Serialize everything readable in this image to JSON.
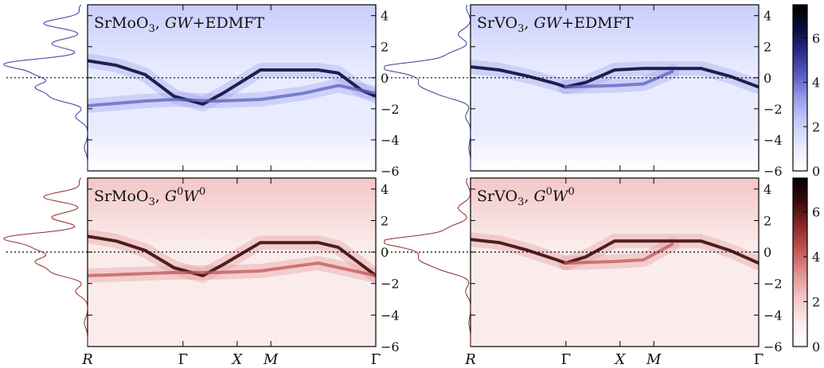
{
  "figure": {
    "high_label": "k-path labels and colorbar ticks as printed"
  },
  "kpath": {
    "labels": [
      "R",
      "Γ",
      "X",
      "M",
      "Γ"
    ]
  },
  "colors": {
    "blue_scale": [
      "#ffffff",
      "#e9ebff",
      "#c9cdfb",
      "#9aa0ec",
      "#5b60c2",
      "#2a2d8a",
      "#0b0c3a",
      "#000000"
    ],
    "red_scale": [
      "#ffffff",
      "#fbecec",
      "#f3c6c6",
      "#e29494",
      "#c25656",
      "#8a2a2a",
      "#3a0b0b",
      "#000000"
    ],
    "blue_line": "#3b3b9c",
    "red_line": "#8e2b2b",
    "fermi_line": "#000000"
  },
  "chart_data": [
    {
      "type": "heatmap",
      "title": "SrMoO3, GW+EDMFT",
      "title_parts": {
        "material": "SrMoO",
        "sub": "3",
        "method": "GW+EDMFT"
      },
      "colormap": "blue",
      "xticklabels": [
        "R",
        "Γ",
        "X",
        "M",
        "Γ"
      ],
      "xlabel": "",
      "ylabel": "",
      "ylim": [
        -6,
        4.7
      ],
      "yticks": [
        -6,
        -4,
        -2,
        0,
        2,
        4
      ],
      "fermi_level": 0,
      "bands": [
        {
          "name": "",
          "points": [
            [
              0,
              1.1
            ],
            [
              0.1,
              0.8
            ],
            [
              0.2,
              0.2
            ],
            [
              0.3,
              -1.2
            ],
            [
              0.4,
              -1.7
            ],
            [
              0.47,
              -1.0
            ],
            [
              0.6,
              0.5
            ],
            [
              0.7,
              0.5
            ],
            [
              0.8,
              0.5
            ],
            [
              0.87,
              0.3
            ],
            [
              0.95,
              -0.8
            ],
            [
              1,
              -1.2
            ]
          ]
        },
        {
          "name": "",
          "points": [
            [
              0,
              -1.8
            ],
            [
              0.2,
              -1.5
            ],
            [
              0.3,
              -1.4
            ],
            [
              0.45,
              -1.5
            ],
            [
              0.6,
              -1.4
            ],
            [
              0.75,
              -1.0
            ],
            [
              0.87,
              -0.5
            ],
            [
              1,
              -1.0
            ]
          ]
        }
      ],
      "dos_side": "left"
    },
    {
      "type": "heatmap",
      "title": "SrVO3, GW+EDMFT",
      "title_parts": {
        "material": "SrVO",
        "sub": "3",
        "method": "GW+EDMFT"
      },
      "colormap": "blue",
      "xticklabels": [
        "R",
        "Γ",
        "X",
        "M",
        "Γ"
      ],
      "xlabel": "",
      "ylabel": "",
      "ylim": [
        -6,
        4.7
      ],
      "yticks": [
        -6,
        -4,
        -2,
        0,
        2,
        4
      ],
      "fermi_level": 0,
      "bands": [
        {
          "name": "",
          "points": [
            [
              0,
              0.7
            ],
            [
              0.1,
              0.5
            ],
            [
              0.2,
              0.1
            ],
            [
              0.3,
              -0.4
            ],
            [
              0.33,
              -0.6
            ],
            [
              0.4,
              -0.3
            ],
            [
              0.5,
              0.5
            ],
            [
              0.6,
              0.6
            ],
            [
              0.8,
              0.6
            ],
            [
              0.9,
              0.1
            ],
            [
              1,
              -0.6
            ]
          ]
        },
        {
          "name": "",
          "points": [
            [
              0.33,
              -0.6
            ],
            [
              0.5,
              -0.5
            ],
            [
              0.6,
              -0.4
            ],
            [
              0.7,
              0.4
            ]
          ]
        }
      ],
      "dos_side": "left"
    },
    {
      "type": "heatmap",
      "title": "SrMoO3, G0W0",
      "title_parts": {
        "material": "SrMoO",
        "sub": "3",
        "method": "G",
        "sup1": "0",
        "method2": "W",
        "sup2": "0"
      },
      "colormap": "red",
      "xticklabels": [
        "R",
        "Γ",
        "X",
        "M",
        "Γ"
      ],
      "xlabel": "",
      "ylabel": "",
      "ylim": [
        -6,
        4.7
      ],
      "yticks": [
        -6,
        -4,
        -2,
        0,
        2,
        4
      ],
      "fermi_level": 0,
      "bands": [
        {
          "name": "",
          "points": [
            [
              0,
              1.0
            ],
            [
              0.1,
              0.7
            ],
            [
              0.2,
              0.1
            ],
            [
              0.3,
              -1.0
            ],
            [
              0.4,
              -1.5
            ],
            [
              0.47,
              -0.8
            ],
            [
              0.6,
              0.6
            ],
            [
              0.7,
              0.6
            ],
            [
              0.8,
              0.6
            ],
            [
              0.87,
              0.3
            ],
            [
              0.95,
              -0.8
            ],
            [
              1,
              -1.5
            ]
          ]
        },
        {
          "name": "",
          "points": [
            [
              0,
              -1.5
            ],
            [
              0.3,
              -1.3
            ],
            [
              0.45,
              -1.3
            ],
            [
              0.6,
              -1.2
            ],
            [
              0.8,
              -0.7
            ],
            [
              1,
              -1.5
            ]
          ]
        }
      ],
      "dos_side": "left"
    },
    {
      "type": "heatmap",
      "title": "SrVO3, G0W0",
      "title_parts": {
        "material": "SrVO",
        "sub": "3",
        "method": "G",
        "sup1": "0",
        "method2": "W",
        "sup2": "0"
      },
      "colormap": "red",
      "xticklabels": [
        "R",
        "Γ",
        "X",
        "M",
        "Γ"
      ],
      "xlabel": "",
      "ylabel": "",
      "ylim": [
        -6,
        4.7
      ],
      "yticks": [
        -6,
        -4,
        -2,
        0,
        2,
        4
      ],
      "fermi_level": 0,
      "bands": [
        {
          "name": "",
          "points": [
            [
              0,
              0.8
            ],
            [
              0.1,
              0.6
            ],
            [
              0.2,
              0.1
            ],
            [
              0.3,
              -0.5
            ],
            [
              0.33,
              -0.7
            ],
            [
              0.4,
              -0.3
            ],
            [
              0.5,
              0.7
            ],
            [
              0.6,
              0.7
            ],
            [
              0.8,
              0.7
            ],
            [
              0.9,
              0.1
            ],
            [
              1,
              -0.7
            ]
          ]
        },
        {
          "name": "",
          "points": [
            [
              0.33,
              -0.7
            ],
            [
              0.5,
              -0.6
            ],
            [
              0.6,
              -0.5
            ],
            [
              0.7,
              0.5
            ]
          ]
        }
      ],
      "dos_side": "left"
    }
  ],
  "colorbars": [
    {
      "colormap": "blue",
      "range": [
        0,
        7.5
      ],
      "ticks": [
        0,
        2,
        4,
        6
      ]
    },
    {
      "colormap": "red",
      "range": [
        0,
        7.5
      ],
      "ticks": [
        0,
        2,
        4,
        6
      ]
    }
  ]
}
